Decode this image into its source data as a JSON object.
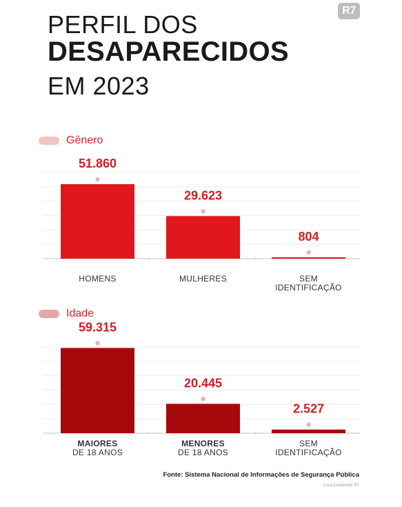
{
  "logo": "R7",
  "title": {
    "line1": "PERFIL DOS",
    "line2": "DESAPARECIDOS",
    "line3": "EM 2023"
  },
  "colors": {
    "genero_bar": "#e0181e",
    "idade_bar": "#a6090c",
    "label_red": "#cf1f25",
    "swatch_genero": "#f2c4c4",
    "swatch_idade": "#e3a7a7",
    "marker": "#e8b3b3"
  },
  "chart_data": [
    {
      "type": "bar",
      "title": "Gênero",
      "categories": [
        "HOMENS",
        "MULHERES",
        "SEM IDENTIFICAÇÃO"
      ],
      "category_lines": [
        [
          "HOMENS"
        ],
        [
          "MULHERES"
        ],
        [
          "SEM",
          "IDENTIFICAÇÃO"
        ]
      ],
      "values": [
        51860,
        29623,
        804
      ],
      "value_labels": [
        "51.860",
        "29.623",
        "804"
      ],
      "ylim": [
        0,
        60000
      ],
      "grid": true
    },
    {
      "type": "bar",
      "title": "Idade",
      "categories": [
        "MAIORES DE 18 ANOS",
        "MENORES DE 18 ANOS",
        "SEM IDENTIFICAÇÃO"
      ],
      "category_lines": [
        [
          "MAIORES",
          "DE 18 ANOS"
        ],
        [
          "MENORES",
          "DE 18 ANOS"
        ],
        [
          "SEM",
          "IDENTIFICAÇÃO"
        ]
      ],
      "values": [
        59315,
        20445,
        2527
      ],
      "value_labels": [
        "59.315",
        "20.445",
        "2.527"
      ],
      "ylim": [
        0,
        60000
      ],
      "grid": true
    }
  ],
  "source": "Fonte: Sistema Nacional de Informações de Segurança Pública",
  "credit": "Luca Costa/Arte R7"
}
